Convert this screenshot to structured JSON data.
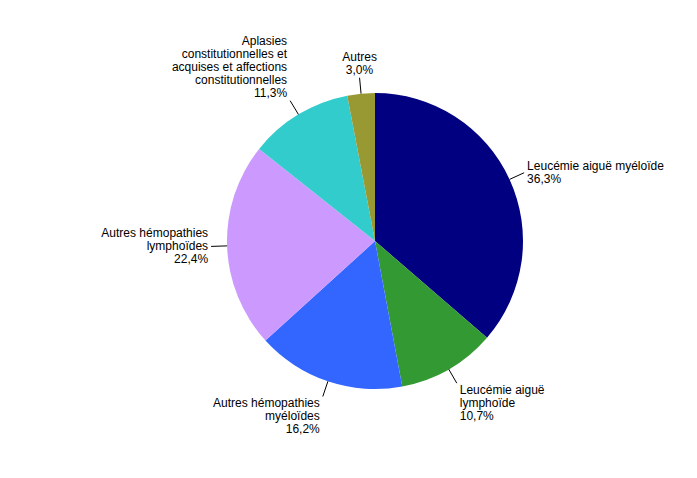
{
  "chart_data": {
    "type": "pie",
    "categories": [
      "Leucémie aiguë myéloïde",
      "Leucémie aiguë lymphoïde",
      "Autres hémopathies myéloïdes",
      "Autres hémopathies lymphoïdes",
      "Aplasies constitutionnelles et acquises et affections constitutionnelles",
      "Autres"
    ],
    "values": [
      36.3,
      10.7,
      16.2,
      22.4,
      11.3,
      3.0
    ],
    "value_labels": [
      "36,3%",
      "10,7%",
      "16,2%",
      "22,4%",
      "11,3%",
      "3,0%"
    ],
    "colors": [
      "#000080",
      "#339933",
      "#3366ff",
      "#cc99ff",
      "#33cccc",
      "#999933"
    ],
    "data_labels": true
  }
}
